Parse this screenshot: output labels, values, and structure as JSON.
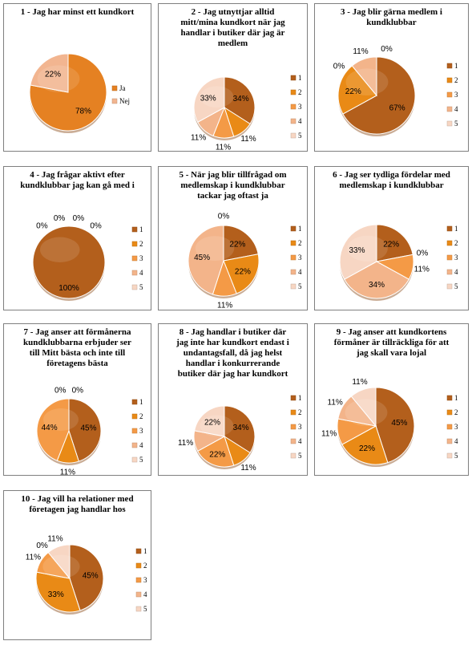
{
  "chart_data": [
    {
      "type": "pie",
      "title": "1 - Jag har minst ett kundkort",
      "categories": [
        "Ja",
        "Nej"
      ],
      "values": [
        78,
        22
      ],
      "legend": "right",
      "colors": [
        "#E58122",
        "#F2B590"
      ]
    },
    {
      "type": "pie",
      "title": "2 - Jag utnyttjar alltid mitt/mina kundkort när jag handlar i butiker där jag är medlem",
      "categories": [
        "1",
        "2",
        "3",
        "4",
        "5"
      ],
      "values": [
        34,
        11,
        11,
        11,
        33
      ],
      "legend": "right",
      "colors": [
        "#B35F1C",
        "#E98A16",
        "#F49A46",
        "#F3B48A",
        "#F7D6C3"
      ]
    },
    {
      "type": "pie",
      "title": "3 - Jag blir gärna medlem i kundklubbar",
      "categories": [
        "1",
        "2",
        "3",
        "4",
        "5"
      ],
      "values": [
        67,
        22,
        0,
        11,
        0
      ],
      "legend": "right",
      "colors": [
        "#B35F1C",
        "#E98A16",
        "#F49A46",
        "#F3B48A",
        "#F7D6C3"
      ]
    },
    {
      "type": "pie",
      "title": "4 - Jag frågar aktivt efter kundklubbar jag kan gå med i",
      "categories": [
        "1",
        "2",
        "3",
        "4",
        "5"
      ],
      "values": [
        100,
        0,
        0,
        0,
        0
      ],
      "legend": "right",
      "colors": [
        "#B35F1C",
        "#E98A16",
        "#F49A46",
        "#F3B48A",
        "#F7D6C3"
      ]
    },
    {
      "type": "pie",
      "title": "5 - När jag blir tillfrågad om medlemskap i kundklubbar tackar jag oftast ja",
      "categories": [
        "1",
        "2",
        "3",
        "4",
        "5"
      ],
      "values": [
        22,
        22,
        11,
        45,
        0
      ],
      "legend": "right",
      "colors": [
        "#B35F1C",
        "#E98A16",
        "#F49A46",
        "#F3B48A",
        "#F7D6C3"
      ]
    },
    {
      "type": "pie",
      "title": "6 - Jag ser tydliga fördelar med medlemskap i kundklubbar",
      "categories": [
        "1",
        "2",
        "3",
        "4",
        "5"
      ],
      "values": [
        22,
        0,
        11,
        34,
        33
      ],
      "legend": "right",
      "colors": [
        "#B35F1C",
        "#E98A16",
        "#F49A46",
        "#F3B48A",
        "#F7D6C3"
      ]
    },
    {
      "type": "pie",
      "title": "7 - Jag anser att förmånerna kundklubbarna erbjuder ser till Mitt bästa och inte till företagens bästa",
      "categories": [
        "1",
        "2",
        "3",
        "4",
        "5"
      ],
      "values": [
        45,
        11,
        44,
        0,
        0
      ],
      "legend": "right",
      "colors": [
        "#B35F1C",
        "#E98A16",
        "#F49A46",
        "#F3B48A",
        "#F7D6C3"
      ]
    },
    {
      "type": "pie",
      "title": "8 - Jag handlar i butiker där jag inte har kundkort endast i undantagsfall, då jag helst handlar i konkurrerande butiker där jag har kundkort",
      "categories": [
        "1",
        "2",
        "3",
        "4",
        "5"
      ],
      "values": [
        34,
        11,
        22,
        11,
        22
      ],
      "legend": "right",
      "colors": [
        "#B35F1C",
        "#E98A16",
        "#F49A46",
        "#F3B48A",
        "#F7D6C3"
      ]
    },
    {
      "type": "pie",
      "title": "9 - Jag anser att kundkortens förmåner är tillräckliga för att jag skall vara lojal",
      "categories": [
        "1",
        "2",
        "3",
        "4",
        "5"
      ],
      "values": [
        45,
        22,
        11,
        11,
        11
      ],
      "legend": "right",
      "colors": [
        "#B35F1C",
        "#E98A16",
        "#F49A46",
        "#F3B48A",
        "#F7D6C3"
      ]
    },
    {
      "type": "pie",
      "title": "10 - Jag vill ha relationer med företagen jag handlar hos",
      "categories": [
        "1",
        "2",
        "3",
        "4",
        "5"
      ],
      "values": [
        45,
        33,
        11,
        0,
        11
      ],
      "legend": "right",
      "colors": [
        "#B35F1C",
        "#E98A16",
        "#F49A46",
        "#F3B48A",
        "#F7D6C3"
      ]
    }
  ]
}
